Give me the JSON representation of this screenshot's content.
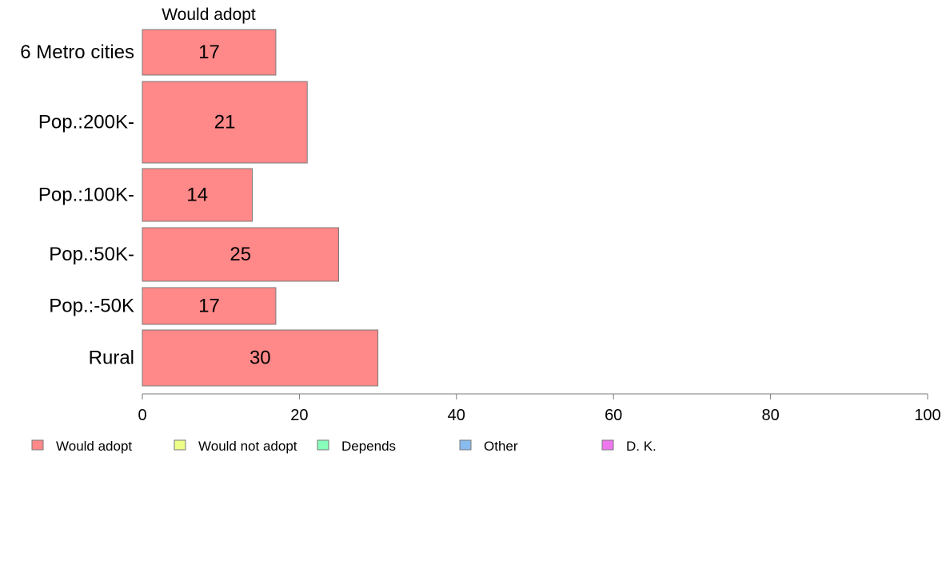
{
  "chart_data": {
    "type": "bar",
    "orientation": "horizontal",
    "column_header": "Would adopt",
    "categories": [
      "6 Metro cities",
      "Pop.:200K-",
      "Pop.:100K-",
      "Pop.:50K-",
      "Pop.:-50K",
      "Rural"
    ],
    "series": [
      {
        "name": "Would adopt",
        "color": "#ff8888",
        "values": [
          17,
          21,
          14,
          25,
          17,
          30
        ]
      }
    ],
    "value_labels": [
      "17",
      "21",
      "14",
      "25",
      "17",
      "30"
    ],
    "xlim": [
      0,
      100
    ],
    "xticks": [
      0,
      20,
      40,
      60,
      80,
      100
    ],
    "xtick_labels": [
      "0",
      "20",
      "40",
      "60",
      "80",
      "100"
    ],
    "grid": false,
    "legend_position": "bottom-left",
    "legend": [
      {
        "label": "Would adopt",
        "color": "#ff8888"
      },
      {
        "label": "Would not adopt",
        "color": "#eeff88"
      },
      {
        "label": "Depends",
        "color": "#88ffbb"
      },
      {
        "label": "Other",
        "color": "#88bbee"
      },
      {
        "label": "D. K.",
        "color": "#ee77ee"
      }
    ]
  }
}
